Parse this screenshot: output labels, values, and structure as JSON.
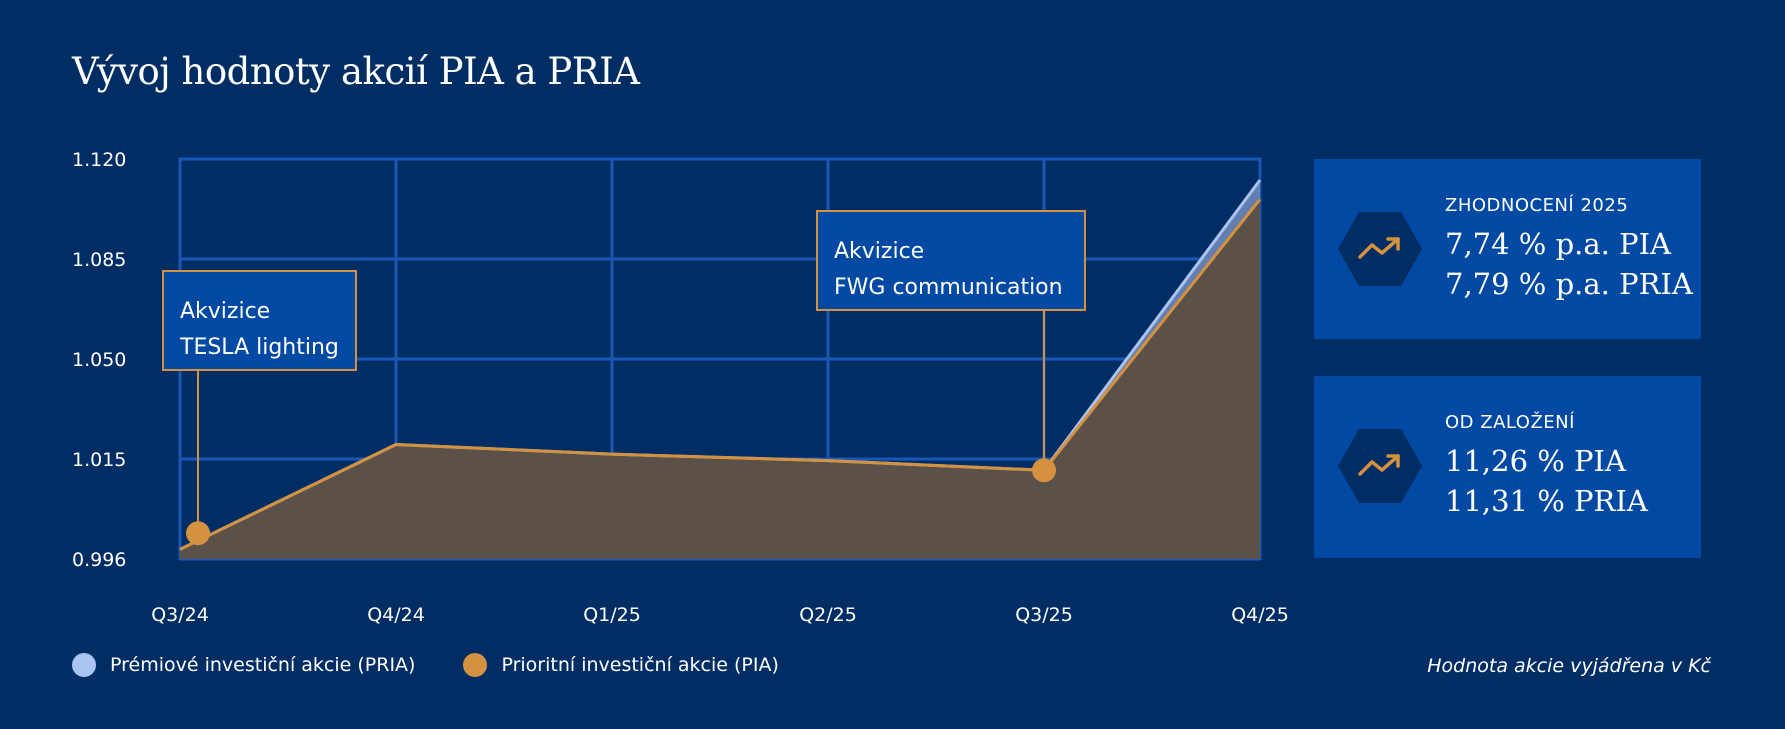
{
  "title": "Vývoj hodnoty akcií PIA a PRIA",
  "chart_data": {
    "type": "area",
    "categories": [
      "Q3/24",
      "Q4/24",
      "Q1/25",
      "Q2/25",
      "Q3/25",
      "Q4/25"
    ],
    "y_ticks": [
      "1.120",
      "1.085",
      "1.050",
      "1.015",
      "0.996"
    ],
    "y_tick_values": [
      1.12,
      1.085,
      1.05,
      1.015,
      0.996
    ],
    "ylim": [
      0.996,
      1.12
    ],
    "grid": true,
    "series": [
      {
        "name": "Prémiové investiční akcie (PRIA)",
        "color": "#a9c3f2",
        "values": [
          0.999,
          1.0315,
          1.0285,
          1.0265,
          1.0235,
          1.1135
        ]
      },
      {
        "name": "Prioritní investiční akcie (PIA)",
        "color": "#d4913f",
        "values": [
          0.999,
          1.0315,
          1.0285,
          1.0265,
          1.0235,
          1.1075
        ]
      }
    ],
    "annotations": [
      {
        "line1": "Akvizice",
        "line2": "TESLA lighting",
        "x_index": 0,
        "value": 1.004
      },
      {
        "line1": "Akvizice",
        "line2": "FWG communication",
        "x_index": 4,
        "value": 1.0235
      }
    ]
  },
  "stats": [
    {
      "label": "ZHODNOCENÍ 2025",
      "line1": "7,74 % p.a. PIA",
      "line2": "7,79 % p.a. PRIA",
      "icon": "trend-up-icon"
    },
    {
      "label": "OD ZALOŽENÍ",
      "line1": "11,26 % PIA",
      "line2": "11,31 % PRIA",
      "icon": "trend-up-icon"
    }
  ],
  "legend": [
    {
      "label": "Prémiové investiční akcie (PRIA)",
      "color": "#a9c3f2"
    },
    {
      "label": "Prioritní investiční akcie (PIA)",
      "color": "#d4913f"
    }
  ],
  "note": "Hodnota akcie vyjádřena v Kč",
  "colors": {
    "background": "#002d64",
    "card": "#0149a3",
    "grid": "#1a56b5",
    "accent": "#d4913f",
    "area_fill": "#5c5148",
    "hex": "#002d64"
  }
}
